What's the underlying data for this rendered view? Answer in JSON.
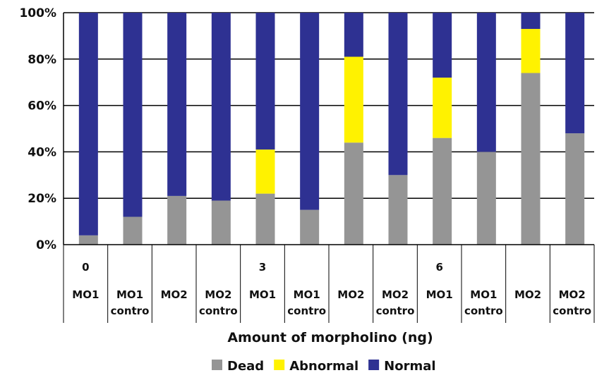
{
  "chart_data": {
    "type": "bar",
    "stacked": true,
    "normalized": true,
    "title": "",
    "xlabel": "Amount of morpholino (ng)",
    "ylabel": "",
    "ylim": [
      0,
      100
    ],
    "yticks": [
      "0%",
      "20%",
      "40%",
      "60%",
      "80%",
      "100%"
    ],
    "grid": true,
    "legend_position": "bottom",
    "dose_groups": [
      {
        "label": "0",
        "start": 0,
        "count": 4
      },
      {
        "label": "3",
        "start": 4,
        "count": 4
      },
      {
        "label": "6",
        "start": 8,
        "count": 4
      }
    ],
    "categories": [
      {
        "line1": "MO1",
        "line2": ""
      },
      {
        "line1": "MO1",
        "line2": "contro"
      },
      {
        "line1": "MO2",
        "line2": ""
      },
      {
        "line1": "MO2",
        "line2": "contro"
      },
      {
        "line1": "MO1",
        "line2": ""
      },
      {
        "line1": "MO1",
        "line2": "contro"
      },
      {
        "line1": "MO2",
        "line2": ""
      },
      {
        "line1": "MO2",
        "line2": "contro"
      },
      {
        "line1": "MO1",
        "line2": ""
      },
      {
        "line1": "MO1",
        "line2": "contro"
      },
      {
        "line1": "MO2",
        "line2": ""
      },
      {
        "line1": "MO2",
        "line2": "contro"
      }
    ],
    "series": [
      {
        "name": "Dead",
        "color": "#959595",
        "values": [
          4,
          12,
          21,
          19,
          22,
          15,
          44,
          30,
          46,
          40,
          74,
          48
        ]
      },
      {
        "name": "Abnormal",
        "color": "#fff200",
        "values": [
          0,
          0,
          0,
          0,
          19,
          0,
          37,
          0,
          26,
          0,
          19,
          0
        ]
      },
      {
        "name": "Normal",
        "color": "#2e3192",
        "values": [
          96,
          88,
          79,
          81,
          59,
          85,
          19,
          70,
          28,
          60,
          7,
          52
        ]
      }
    ]
  }
}
